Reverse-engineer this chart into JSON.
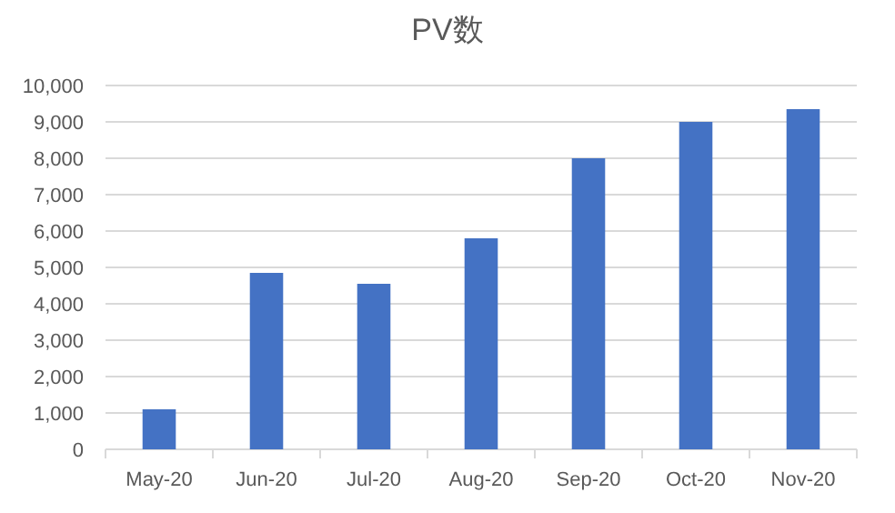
{
  "chart_data": {
    "type": "bar",
    "title": "PV数",
    "categories": [
      "May-20",
      "Jun-20",
      "Jul-20",
      "Aug-20",
      "Sep-20",
      "Oct-20",
      "Nov-20"
    ],
    "values": [
      1100,
      4850,
      4550,
      5800,
      8000,
      9000,
      9350
    ],
    "color": "#4472c4",
    "ylim": [
      0,
      10000
    ],
    "yticks": [
      0,
      {
        "value": 1000,
        "label": "1,000"
      },
      {
        "value": 2000,
        "label": "2,000"
      },
      {
        "value": 3000,
        "label": "3,000"
      },
      {
        "value": 4000,
        "label": "4,000"
      },
      {
        "value": 5000,
        "label": "5,000"
      },
      {
        "value": 6000,
        "label": "6,000"
      },
      {
        "value": 7000,
        "label": "7,000"
      },
      {
        "value": 8000,
        "label": "8,000"
      },
      {
        "value": 9000,
        "label": "9,000"
      },
      {
        "value": 10000,
        "label": "10,000"
      }
    ],
    "grid": "y"
  }
}
